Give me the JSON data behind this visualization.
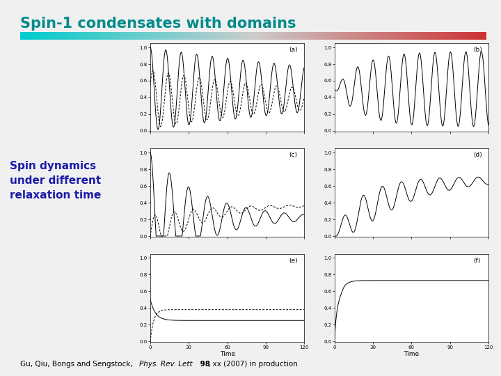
{
  "title": "Spin-1 condensates with domains",
  "title_color": "#008B8B",
  "subtitle_left": "Spin dynamics\nunder different\nrelaxation time",
  "subtitle_color": "#1a1aaa",
  "panel_labels": [
    "(a)",
    "(b)",
    "(c)",
    "(d)",
    "(e)",
    "(f)"
  ],
  "xlim": [
    0,
    120
  ],
  "ylim": [
    0.0,
    1.0
  ],
  "xticks": [
    0,
    30,
    60,
    90,
    120
  ],
  "yticks": [
    0.0,
    0.2,
    0.4,
    0.6,
    0.8,
    1.0
  ],
  "xlabel": "Time",
  "background_color": "#f0f0f0",
  "gradient_left": "#00cccc",
  "gradient_mid": "#cccccc",
  "gradient_right": "#cc3333"
}
